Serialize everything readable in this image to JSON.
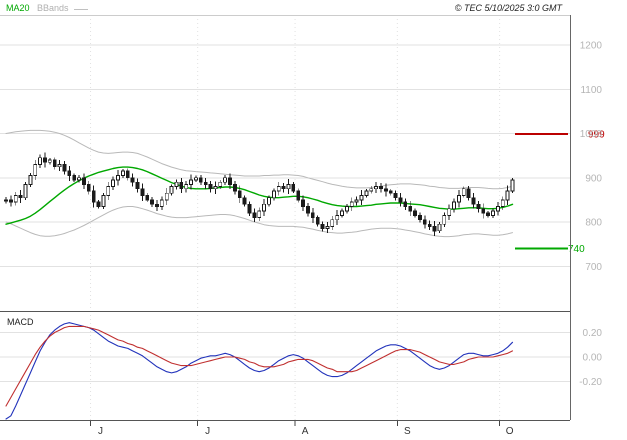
{
  "header": {
    "ma20_label": "MA20",
    "bbands_label": "BBands",
    "copyright": "© TEC 5/10/2025 3:0 GMT"
  },
  "colors": {
    "grid": "#e2e2e2",
    "axis_text": "#b5b5b5",
    "month_text": "#333333",
    "border": "#666666",
    "divider": "#555555",
    "candle": "#1a1a1a",
    "ma20": "#00a800",
    "bbands": "#b9b9b9",
    "alert_red": "#bb0000",
    "alert_green": "#00a800",
    "macd_blue": "#2233bb",
    "macd_red": "#c03030"
  },
  "chart_data": [
    {
      "type": "candlestick",
      "name": "Price",
      "ylim": [
        650,
        1250
      ],
      "y_ticks": [
        1200,
        1100,
        1000,
        900,
        800,
        700
      ],
      "x_ticks": [
        {
          "label": "J",
          "index": 19
        },
        {
          "label": "J",
          "index": 41
        },
        {
          "label": "A",
          "index": 61
        },
        {
          "label": "S",
          "index": 82
        },
        {
          "label": "O",
          "index": 103
        }
      ],
      "alert_lines": [
        {
          "label": "999",
          "value": 999,
          "color": "#bb0000"
        },
        {
          "label": "740",
          "value": 740,
          "color": "#00a800"
        }
      ],
      "candles_ohlc": [
        [
          848,
          856,
          842,
          850
        ],
        [
          850,
          860,
          835,
          845
        ],
        [
          845,
          868,
          837,
          860
        ],
        [
          860,
          872,
          843,
          855
        ],
        [
          855,
          890,
          850,
          885
        ],
        [
          885,
          911,
          879,
          905
        ],
        [
          905,
          940,
          895,
          930
        ],
        [
          930,
          953,
          922,
          945
        ],
        [
          945,
          957,
          923,
          935
        ],
        [
          935,
          945,
          930,
          940
        ],
        [
          940,
          946,
          919,
          925
        ],
        [
          925,
          940,
          915,
          930
        ],
        [
          930,
          938,
          907,
          915
        ],
        [
          915,
          927,
          893,
          905
        ],
        [
          905,
          910,
          890,
          895
        ],
        [
          895,
          906,
          889,
          900
        ],
        [
          900,
          910,
          875,
          885
        ],
        [
          885,
          893,
          862,
          870
        ],
        [
          870,
          882,
          833,
          845
        ],
        [
          845,
          850,
          830,
          835
        ],
        [
          835,
          866,
          829,
          860
        ],
        [
          860,
          890,
          850,
          880
        ],
        [
          880,
          903,
          872,
          895
        ],
        [
          895,
          917,
          883,
          905
        ],
        [
          905,
          920,
          900,
          915
        ],
        [
          915,
          921,
          894,
          900
        ],
        [
          900,
          910,
          880,
          890
        ],
        [
          890,
          898,
          867,
          875
        ],
        [
          875,
          887,
          848,
          860
        ],
        [
          860,
          865,
          845,
          850
        ],
        [
          850,
          856,
          834,
          840
        ],
        [
          840,
          850,
          825,
          835
        ],
        [
          835,
          858,
          827,
          850
        ],
        [
          850,
          877,
          838,
          865
        ],
        [
          865,
          885,
          860,
          880
        ],
        [
          880,
          896,
          874,
          890
        ],
        [
          890,
          900,
          865,
          875
        ],
        [
          875,
          893,
          867,
          885
        ],
        [
          885,
          907,
          873,
          895
        ],
        [
          895,
          905,
          890,
          900
        ],
        [
          900,
          906,
          884,
          890
        ],
        [
          890,
          900,
          875,
          885
        ],
        [
          885,
          893,
          867,
          875
        ],
        [
          875,
          892,
          863,
          880
        ],
        [
          880,
          895,
          875,
          890
        ],
        [
          890,
          906,
          884,
          900
        ],
        [
          900,
          910,
          875,
          885
        ],
        [
          885,
          893,
          862,
          870
        ],
        [
          870,
          882,
          843,
          855
        ],
        [
          855,
          860,
          835,
          840
        ],
        [
          840,
          846,
          814,
          820
        ],
        [
          820,
          830,
          800,
          810
        ],
        [
          810,
          833,
          802,
          825
        ],
        [
          825,
          852,
          813,
          840
        ],
        [
          840,
          860,
          835,
          855
        ],
        [
          855,
          876,
          849,
          870
        ],
        [
          870,
          890,
          860,
          880
        ],
        [
          880,
          888,
          867,
          875
        ],
        [
          875,
          897,
          863,
          885
        ],
        [
          885,
          890,
          865,
          870
        ],
        [
          870,
          876,
          844,
          850
        ],
        [
          850,
          860,
          825,
          835
        ],
        [
          835,
          843,
          812,
          820
        ],
        [
          820,
          832,
          798,
          810
        ],
        [
          810,
          815,
          790,
          795
        ],
        [
          795,
          801,
          779,
          785
        ],
        [
          785,
          800,
          775,
          790
        ],
        [
          790,
          813,
          782,
          805
        ],
        [
          805,
          827,
          793,
          815
        ],
        [
          815,
          830,
          810,
          825
        ],
        [
          825,
          841,
          819,
          835
        ],
        [
          835,
          855,
          825,
          845
        ],
        [
          845,
          858,
          837,
          850
        ],
        [
          850,
          872,
          838,
          860
        ],
        [
          860,
          875,
          855,
          870
        ],
        [
          870,
          881,
          864,
          875
        ],
        [
          875,
          890,
          865,
          880
        ],
        [
          880,
          888,
          867,
          875
        ],
        [
          875,
          887,
          858,
          870
        ],
        [
          870,
          875,
          860,
          865
        ],
        [
          865,
          871,
          849,
          855
        ],
        [
          855,
          865,
          835,
          845
        ],
        [
          845,
          853,
          827,
          835
        ],
        [
          835,
          847,
          813,
          825
        ],
        [
          825,
          830,
          810,
          815
        ],
        [
          815,
          821,
          799,
          805
        ],
        [
          805,
          815,
          785,
          795
        ],
        [
          795,
          803,
          782,
          790
        ],
        [
          790,
          802,
          768,
          780
        ],
        [
          780,
          800,
          775,
          795
        ],
        [
          795,
          821,
          789,
          815
        ],
        [
          815,
          840,
          805,
          830
        ],
        [
          830,
          853,
          822,
          845
        ],
        [
          845,
          872,
          833,
          860
        ],
        [
          860,
          880,
          855,
          875
        ],
        [
          875,
          881,
          849,
          855
        ],
        [
          855,
          865,
          830,
          840
        ],
        [
          840,
          848,
          822,
          830
        ],
        [
          830,
          842,
          808,
          820
        ],
        [
          820,
          825,
          810,
          815
        ],
        [
          815,
          831,
          809,
          825
        ],
        [
          825,
          845,
          815,
          835
        ],
        [
          835,
          858,
          827,
          850
        ],
        [
          850,
          882,
          838,
          870
        ],
        [
          870,
          900,
          865,
          895
        ]
      ],
      "overlays": [
        {
          "name": "BBands upper",
          "color": "#b9b9b9",
          "values": [
            1000,
            1002,
            1004,
            1005,
            1006,
            1007,
            1007,
            1007,
            1006,
            1005,
            1003,
            1000,
            996,
            991,
            985,
            979,
            973,
            967,
            962,
            958,
            956,
            955,
            956,
            957,
            958,
            958,
            957,
            955,
            951,
            947,
            942,
            937,
            932,
            928,
            924,
            921,
            918,
            916,
            915,
            914,
            913,
            912,
            911,
            910,
            909,
            908,
            907,
            906,
            905,
            904,
            904,
            904,
            904,
            905,
            905,
            906,
            906,
            907,
            907,
            906,
            905,
            903,
            900,
            897,
            894,
            891,
            888,
            885,
            883,
            881,
            879,
            878,
            877,
            877,
            877,
            878,
            879,
            881,
            883,
            884,
            885,
            886,
            886,
            886,
            885,
            884,
            883,
            881,
            880,
            878,
            877,
            876,
            876,
            876,
            877,
            878,
            878,
            878,
            877,
            876,
            875,
            875,
            876,
            878,
            881
          ]
        },
        {
          "name": "BBands lower",
          "color": "#b9b9b9",
          "values": [
            800,
            796,
            791,
            786,
            781,
            776,
            772,
            769,
            768,
            768,
            769,
            771,
            774,
            778,
            782,
            787,
            792,
            798,
            804,
            810,
            816,
            822,
            827,
            831,
            834,
            835,
            835,
            833,
            830,
            827,
            823,
            819,
            816,
            813,
            811,
            810,
            810,
            810,
            811,
            812,
            813,
            814,
            815,
            816,
            817,
            817,
            816,
            814,
            811,
            808,
            804,
            800,
            797,
            794,
            792,
            791,
            790,
            790,
            790,
            790,
            789,
            788,
            786,
            784,
            781,
            779,
            777,
            776,
            775,
            775,
            776,
            777,
            778,
            780,
            782,
            784,
            785,
            786,
            786,
            786,
            785,
            784,
            782,
            780,
            778,
            776,
            773,
            771,
            769,
            768,
            767,
            767,
            768,
            769,
            771,
            772,
            773,
            773,
            772,
            771,
            770,
            770,
            771,
            773,
            776
          ]
        },
        {
          "name": "MA20",
          "color": "#00a800",
          "values": [
            795,
            798,
            801,
            804,
            808,
            813,
            820,
            828,
            837,
            846,
            855,
            864,
            872,
            880,
            887,
            893,
            899,
            904,
            908,
            912,
            915,
            918,
            921,
            923,
            924,
            924,
            923,
            921,
            918,
            914,
            909,
            904,
            899,
            894,
            889,
            885,
            881,
            878,
            876,
            875,
            875,
            875,
            876,
            877,
            878,
            879,
            879,
            878,
            876,
            873,
            869,
            865,
            861,
            858,
            856,
            855,
            855,
            856,
            857,
            858,
            858,
            857,
            855,
            852,
            849,
            845,
            842,
            839,
            837,
            836,
            835,
            835,
            835,
            836,
            837,
            838,
            840,
            841,
            842,
            843,
            843,
            843,
            842,
            841,
            840,
            839,
            837,
            835,
            833,
            831,
            830,
            829,
            829,
            830,
            831,
            832,
            832,
            832,
            831,
            830,
            830,
            831,
            833,
            836,
            840
          ]
        }
      ]
    },
    {
      "type": "line",
      "name": "MACD",
      "y_ticks": [
        0.2,
        0,
        -0.2
      ],
      "y_tick_labels": [
        "0.20",
        "0.00",
        "-0.20"
      ],
      "series": [
        {
          "name": "MACD line",
          "color": "#2233bb",
          "values": [
            -0.55,
            -0.48,
            -0.4,
            -0.31,
            -0.22,
            -0.13,
            -0.04,
            0.05,
            0.12,
            0.18,
            0.22,
            0.25,
            0.27,
            0.28,
            0.27,
            0.26,
            0.25,
            0.24,
            0.22,
            0.19,
            0.16,
            0.13,
            0.11,
            0.09,
            0.08,
            0.07,
            0.05,
            0.03,
            0.01,
            -0.02,
            -0.05,
            -0.08,
            -0.1,
            -0.12,
            -0.13,
            -0.12,
            -0.1,
            -0.08,
            -0.05,
            -0.03,
            -0.01,
            0.0,
            0.01,
            0.01,
            0.02,
            0.03,
            0.02,
            0.0,
            -0.03,
            -0.06,
            -0.09,
            -0.11,
            -0.12,
            -0.11,
            -0.09,
            -0.06,
            -0.03,
            -0.01,
            0.01,
            0.02,
            0.01,
            -0.01,
            -0.04,
            -0.07,
            -0.1,
            -0.13,
            -0.15,
            -0.16,
            -0.16,
            -0.15,
            -0.13,
            -0.1,
            -0.07,
            -0.04,
            -0.01,
            0.02,
            0.05,
            0.07,
            0.09,
            0.1,
            0.1,
            0.09,
            0.07,
            0.05,
            0.02,
            -0.01,
            -0.04,
            -0.07,
            -0.09,
            -0.1,
            -0.09,
            -0.07,
            -0.04,
            -0.01,
            0.02,
            0.03,
            0.03,
            0.02,
            0.01,
            0.01,
            0.02,
            0.03,
            0.05,
            0.08,
            0.12
          ]
        },
        {
          "name": "Signal line",
          "color": "#c03030",
          "values": [
            -0.4,
            -0.33,
            -0.26,
            -0.19,
            -0.12,
            -0.05,
            0.02,
            0.08,
            0.13,
            0.17,
            0.2,
            0.22,
            0.24,
            0.25,
            0.25,
            0.25,
            0.25,
            0.24,
            0.23,
            0.22,
            0.2,
            0.18,
            0.16,
            0.14,
            0.13,
            0.11,
            0.1,
            0.08,
            0.07,
            0.05,
            0.03,
            0.01,
            -0.01,
            -0.03,
            -0.05,
            -0.06,
            -0.07,
            -0.07,
            -0.07,
            -0.06,
            -0.05,
            -0.04,
            -0.03,
            -0.02,
            -0.01,
            0.0,
            0.0,
            0.0,
            -0.01,
            -0.02,
            -0.04,
            -0.05,
            -0.07,
            -0.08,
            -0.08,
            -0.08,
            -0.07,
            -0.06,
            -0.04,
            -0.03,
            -0.02,
            -0.02,
            -0.02,
            -0.03,
            -0.05,
            -0.07,
            -0.09,
            -0.1,
            -0.12,
            -0.12,
            -0.12,
            -0.12,
            -0.11,
            -0.09,
            -0.07,
            -0.05,
            -0.03,
            -0.01,
            0.01,
            0.03,
            0.05,
            0.06,
            0.06,
            0.06,
            0.05,
            0.04,
            0.02,
            0.0,
            -0.02,
            -0.04,
            -0.05,
            -0.06,
            -0.06,
            -0.05,
            -0.04,
            -0.02,
            -0.01,
            0.0,
            0.0,
            0.0,
            0.0,
            0.01,
            0.02,
            0.03,
            0.05
          ]
        }
      ]
    }
  ]
}
